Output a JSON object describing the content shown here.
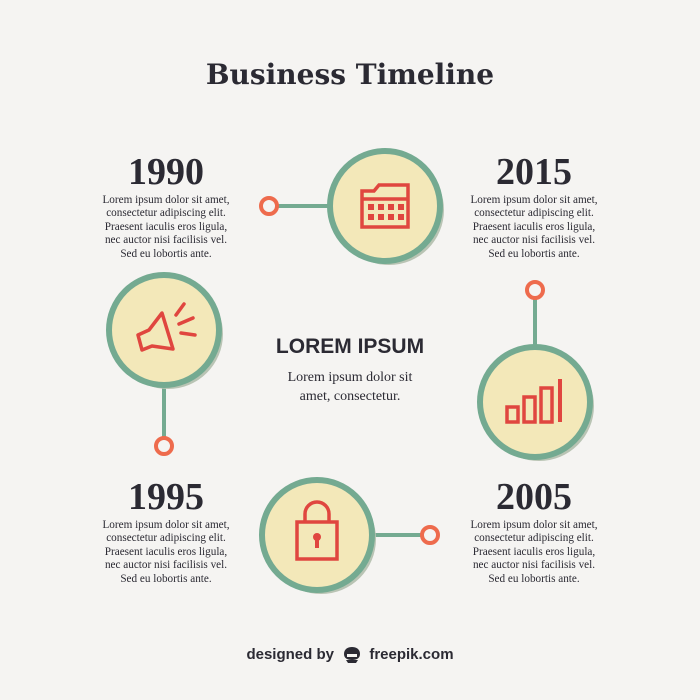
{
  "title": "Business Timeline",
  "center": {
    "heading": "LOREM IPSUM",
    "lines": [
      "Lorem ipsum dolor sit",
      "amet, consectetur."
    ]
  },
  "milestones": [
    {
      "year": "1990",
      "icon": "megaphone-icon",
      "lines": [
        "Lorem ipsum dolor sit amet,",
        "consectetur adipiscing elit.",
        "Praesent iaculis eros ligula,",
        "nec auctor nisi facilisis vel.",
        "Sed eu lobortis ante."
      ]
    },
    {
      "year": "2015",
      "icon": "calendar-icon",
      "lines": [
        "Lorem ipsum dolor sit amet,",
        "consectetur adipiscing elit.",
        "Praesent iaculis eros ligula,",
        "nec auctor nisi facilisis vel.",
        "Sed eu lobortis ante."
      ]
    },
    {
      "year": "1995",
      "icon": "padlock-icon",
      "lines": [
        "Lorem ipsum dolor sit amet,",
        "consectetur adipiscing elit.",
        "Praesent iaculis eros ligula,",
        "nec auctor nisi facilisis vel.",
        "Sed eu lobortis ante."
      ]
    },
    {
      "year": "2005",
      "icon": "bar-chart-icon",
      "lines": [
        "Lorem ipsum dolor sit amet,",
        "consectetur adipiscing elit.",
        "Praesent iaculis eros ligula,",
        "nec auctor nisi facilisis vel.",
        "Sed eu lobortis ante."
      ]
    }
  ],
  "credit": {
    "prefix": "designed by",
    "brand": "freepik.com",
    "icon": "freepik-logo-icon"
  },
  "colors": {
    "background": "#f5f4f2",
    "text": "#2b2a33",
    "circle_fill": "#f3e8b9",
    "circle_ring": "#74aa91",
    "connector": "#74aa91",
    "dot": "#ee6b4d",
    "icon": "#e0463f",
    "shadow": "#b9c4b4"
  }
}
